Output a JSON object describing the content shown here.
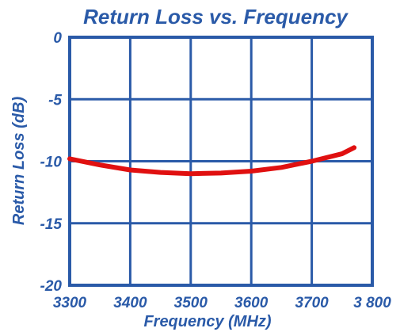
{
  "chart_data": {
    "type": "line",
    "title": "Return Loss vs. Frequency",
    "xlabel": "Frequency (MHz)",
    "ylabel": "Return Loss (dB)",
    "xlim": [
      3300,
      3800
    ],
    "ylim": [
      -20,
      0
    ],
    "x_ticks": [
      3300,
      3400,
      3500,
      3600,
      3700,
      3800
    ],
    "x_tick_labels": [
      "3300",
      "3400",
      "3500",
      "3600",
      "3700",
      "3 800"
    ],
    "y_ticks": [
      0,
      -5,
      -10,
      -15,
      -20
    ],
    "y_tick_labels": [
      "0",
      "-5",
      "-10",
      "-15",
      "-20"
    ],
    "grid": true,
    "colors": {
      "axis": "#2a5aa8",
      "grid": "#2a5aa8",
      "series": "#e01010"
    },
    "series": [
      {
        "x": [
          3300,
          3350,
          3400,
          3450,
          3500,
          3550,
          3600,
          3650,
          3700,
          3750,
          3770
        ],
        "y": [
          -9.8,
          -10.3,
          -10.7,
          -10.9,
          -11.0,
          -10.95,
          -10.8,
          -10.5,
          -10.0,
          -9.4,
          -8.9
        ]
      }
    ]
  }
}
